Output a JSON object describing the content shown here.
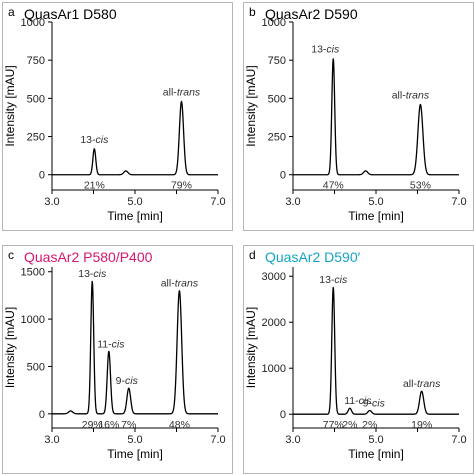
{
  "chart_data": [
    {
      "type": "line",
      "panel": "a",
      "title": "QuasAr1 D580",
      "title_color": "#000000",
      "xlabel": "Time [min]",
      "ylabel": "Intensity [mAU]",
      "xlim": [
        3.0,
        7.0
      ],
      "ylim": [
        -100,
        1000
      ],
      "xticks": [
        3.0,
        4.0,
        5.0,
        6.0,
        7.0
      ],
      "xtick_labels": [
        "3.0",
        "",
        "5.0",
        "",
        "7.0"
      ],
      "yticks": [
        0,
        250,
        500,
        750,
        1000
      ],
      "ytick_labels": [
        "0",
        "250",
        "500",
        "750",
        "1000"
      ],
      "baseline": 0,
      "peaks": [
        {
          "isomer": "13-",
          "isomer_italic": "cis",
          "time": 4.02,
          "height": 170,
          "width": 0.035,
          "percent": "21%"
        },
        {
          "time": 4.78,
          "height": 25,
          "width": 0.05
        },
        {
          "isomer": "all-",
          "isomer_italic": "trans",
          "time": 6.12,
          "height": 480,
          "width": 0.05,
          "percent": "79%"
        }
      ]
    },
    {
      "type": "line",
      "panel": "b",
      "title": "QuasAr2 D590",
      "title_color": "#000000",
      "xlabel": "Time [min]",
      "ylabel": "Intensity [mAU]",
      "xlim": [
        3.0,
        7.0
      ],
      "ylim": [
        -100,
        1000
      ],
      "xticks": [
        3.0,
        4.0,
        5.0,
        6.0,
        7.0
      ],
      "xtick_labels": [
        "3.0",
        "",
        "5.0",
        "",
        "7.0"
      ],
      "yticks": [
        0,
        250,
        500,
        750,
        1000
      ],
      "ytick_labels": [
        "0",
        "250",
        "500",
        "750",
        "1000"
      ],
      "baseline": 0,
      "peaks": [
        {
          "isomer": "13-",
          "isomer_italic": "cis",
          "time": 3.97,
          "height": 760,
          "width": 0.035,
          "percent": "47%"
        },
        {
          "time": 4.75,
          "height": 25,
          "width": 0.05
        },
        {
          "isomer": "all-",
          "isomer_italic": "trans",
          "time": 6.07,
          "height": 460,
          "width": 0.06,
          "percent": "53%"
        }
      ]
    },
    {
      "type": "line",
      "panel": "c",
      "title": "QuasAr2 P580/P400",
      "title_color": "#d6166f",
      "xlabel": "Time [min]",
      "ylabel": "Intensity [mAU]",
      "xlim": [
        3.0,
        7.0
      ],
      "ylim": [
        -150,
        1550
      ],
      "xticks": [
        3.0,
        4.0,
        5.0,
        6.0,
        7.0
      ],
      "xtick_labels": [
        "3.0",
        "",
        "5.0",
        "",
        "7.0"
      ],
      "yticks": [
        0,
        500,
        1000,
        1500
      ],
      "ytick_labels": [
        "0",
        "500",
        "1000",
        "1500"
      ],
      "baseline": 0,
      "peaks": [
        {
          "time": 3.45,
          "height": 30,
          "width": 0.05
        },
        {
          "isomer": "13-",
          "isomer_italic": "cis",
          "time": 3.97,
          "height": 1400,
          "width": 0.035,
          "percent": "29%"
        },
        {
          "isomer": "11-",
          "isomer_italic": "cis",
          "time": 4.37,
          "height": 660,
          "width": 0.04,
          "percent": "16%"
        },
        {
          "isomer": "9-",
          "isomer_italic": "cis",
          "time": 4.85,
          "height": 270,
          "width": 0.045,
          "percent": "7%"
        },
        {
          "isomer": "all-",
          "isomer_italic": "trans",
          "time": 6.07,
          "height": 1300,
          "width": 0.055,
          "percent": "48%"
        }
      ]
    },
    {
      "type": "line",
      "panel": "d",
      "title": "QuasAr2 D590′",
      "title_color": "#14a3c7",
      "xlabel": "Time [min]",
      "ylabel": "Intensity [mAU]",
      "xlim": [
        3.0,
        7.0
      ],
      "ylim": [
        -300,
        3200
      ],
      "xticks": [
        3.0,
        4.0,
        5.0,
        6.0,
        7.0
      ],
      "xtick_labels": [
        "3.0",
        "",
        "5.0",
        "",
        "7.0"
      ],
      "yticks": [
        0,
        1000,
        2000,
        3000
      ],
      "ytick_labels": [
        "0",
        "1000",
        "2000",
        "3000"
      ],
      "baseline": 0,
      "peaks": [
        {
          "isomer": "13-",
          "isomer_italic": "cis",
          "time": 3.97,
          "height": 2760,
          "width": 0.035,
          "percent": "77%"
        },
        {
          "isomer": "11-",
          "isomer_italic": "cis",
          "time": 4.37,
          "height": 130,
          "width": 0.04,
          "percent": "2%"
        },
        {
          "isomer": "9-",
          "isomer_italic": "cis",
          "time": 4.85,
          "height": 80,
          "width": 0.045,
          "percent": "2%"
        },
        {
          "isomer": "all-",
          "isomer_italic": "trans",
          "time": 6.1,
          "height": 500,
          "width": 0.05,
          "percent": "19%"
        }
      ]
    }
  ]
}
